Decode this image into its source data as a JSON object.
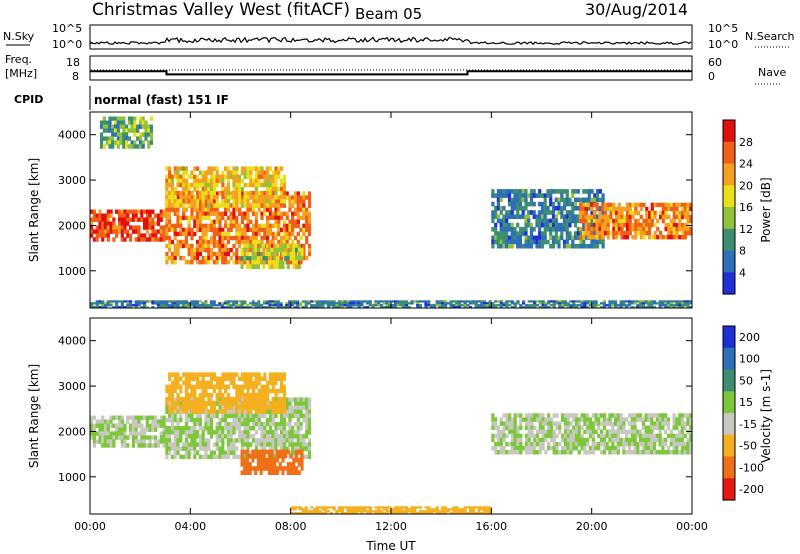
{
  "header": {
    "station": "Christmas Valley West (fitACF)",
    "beam": "Beam 05",
    "date": "30/Aug/2014"
  },
  "top_panels": {
    "nsky_label": "N.Sky",
    "nsky_ticks": [
      "10^5",
      "10^0"
    ],
    "nsearch_label": "N.Search",
    "nsearch_ticks": [
      "10^5",
      "10^0"
    ],
    "freq_label_1": "Freq.",
    "freq_label_2": "[MHz]",
    "freq_ticks": [
      "18",
      "8"
    ],
    "nave_label": "Nave",
    "nave_ticks": [
      "60",
      "0"
    ],
    "cpid_label": "CPID",
    "cpid_text": "normal (fast) 151 IF",
    "freq_trace": [
      {
        "t": 0,
        "mhz": 11.5
      },
      {
        "t": 3.05,
        "mhz": 11.5
      },
      {
        "t": 3.05,
        "mhz": 10.1
      },
      {
        "t": 15.05,
        "mhz": 10.1
      },
      {
        "t": 15.05,
        "mhz": 11.5
      },
      {
        "t": 24,
        "mhz": 11.5
      }
    ]
  },
  "chart_data": [
    {
      "type": "heatmap",
      "title": "Power",
      "xlabel": "Time UT",
      "ylabel": "Slant Range [km]",
      "xlim": [
        0,
        24
      ],
      "ylim": [
        180,
        4500
      ],
      "x_ticks": [
        "00:00",
        "04:00",
        "08:00",
        "12:00",
        "16:00",
        "20:00",
        "00:00"
      ],
      "y_ticks": [
        "1000",
        "2000",
        "3000",
        "4000"
      ],
      "colorbar_label": "Power [dB]",
      "colorbar_ticks": [
        "4",
        "8",
        "12",
        "16",
        "20",
        "24",
        "28"
      ],
      "colorbar_colors": [
        "#1f2fd6",
        "#2d6fb8",
        "#3d8f70",
        "#8fc23a",
        "#e9e01a",
        "#f5a020",
        "#f06018",
        "#e01010"
      ],
      "backscatter_regions": [
        {
          "t0": 0.0,
          "t1": 3.0,
          "r0": 1650,
          "r1": 2350,
          "level": 28
        },
        {
          "t0": 3.0,
          "t1": 8.8,
          "r0": 1150,
          "r1": 2750,
          "level": 24
        },
        {
          "t0": 3.0,
          "t1": 7.8,
          "r0": 2400,
          "r1": 3300,
          "level": 20
        },
        {
          "t0": 6.0,
          "t1": 8.5,
          "r0": 1050,
          "r1": 1600,
          "level": 16
        },
        {
          "t0": 0.4,
          "t1": 2.5,
          "r0": 3700,
          "r1": 4400,
          "level": 12
        },
        {
          "t0": 16.0,
          "t1": 20.5,
          "r0": 1500,
          "r1": 2800,
          "level": 8
        },
        {
          "t0": 19.5,
          "t1": 24.0,
          "r0": 1700,
          "r1": 2500,
          "level": 24
        },
        {
          "t0": 0.0,
          "t1": 24.0,
          "r0": 180,
          "r1": 350,
          "level": 8
        }
      ]
    },
    {
      "type": "heatmap",
      "title": "Velocity",
      "xlabel": "Time UT",
      "ylabel": "Slant Range [km]",
      "xlim": [
        0,
        24
      ],
      "ylim": [
        180,
        4500
      ],
      "x_ticks": [
        "00:00",
        "04:00",
        "08:00",
        "12:00",
        "16:00",
        "20:00",
        "00:00"
      ],
      "y_ticks": [
        "1000",
        "2000",
        "3000",
        "4000"
      ],
      "colorbar_label": "Velocity [m s-1]",
      "colorbar_ticks": [
        "200",
        "100",
        "50",
        "15",
        "-15",
        "-50",
        "-100",
        "-200"
      ],
      "colorbar_colors": [
        "#1f2fd6",
        "#2d6fb8",
        "#3d8f70",
        "#7cc83a",
        "#c8c8c0",
        "#f5b020",
        "#f07018",
        "#e81810"
      ],
      "backscatter_regions": [
        {
          "t0": 0.0,
          "t1": 3.0,
          "r0": 1650,
          "r1": 2350,
          "level": 0
        },
        {
          "t0": 3.0,
          "t1": 8.8,
          "r0": 1400,
          "r1": 2750,
          "level": 0
        },
        {
          "t0": 3.0,
          "t1": 7.8,
          "r0": 2400,
          "r1": 3300,
          "level": -50
        },
        {
          "t0": 6.0,
          "t1": 8.5,
          "r0": 1050,
          "r1": 1600,
          "level": -100
        },
        {
          "t0": 16.0,
          "t1": 24.0,
          "r0": 1500,
          "r1": 2400,
          "level": 0
        },
        {
          "t0": 8.0,
          "t1": 16.0,
          "r0": 180,
          "r1": 350,
          "level": -50
        }
      ]
    }
  ]
}
